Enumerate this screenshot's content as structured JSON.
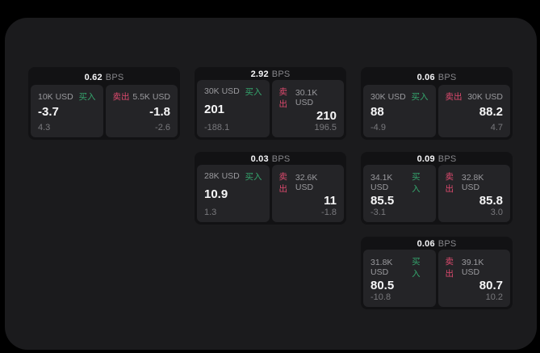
{
  "labels": {
    "buy": "买入",
    "sell": "卖出",
    "bps_unit": "BPS"
  },
  "colors": {
    "buy_green": "#35a56d",
    "sell_pink": "#dd4a6e",
    "panel_bg": "#1b1b1d",
    "card_bg": "#121214",
    "pane_bg": "#242427"
  },
  "cards": [
    {
      "row": 1,
      "col": 1,
      "bps": "0.62",
      "buy": {
        "amount": "10K USD",
        "price": "-3.7",
        "delta": "4.3"
      },
      "sell": {
        "amount": "5.5K USD",
        "price": "-1.8",
        "delta": "-2.6"
      }
    },
    {
      "row": 1,
      "col": 2,
      "bps": "2.92",
      "buy": {
        "amount": "30K USD",
        "price": "201",
        "delta": "-188.1"
      },
      "sell": {
        "amount": "30.1K USD",
        "price": "210",
        "delta": "196.5"
      }
    },
    {
      "row": 1,
      "col": 3,
      "bps": "0.06",
      "buy": {
        "amount": "30K USD",
        "price": "88",
        "delta": "-4.9"
      },
      "sell": {
        "amount": "30K USD",
        "price": "88.2",
        "delta": "4.7"
      }
    },
    {
      "row": 2,
      "col": 2,
      "bps": "0.03",
      "buy": {
        "amount": "28K USD",
        "price": "10.9",
        "delta": "1.3"
      },
      "sell": {
        "amount": "32.6K USD",
        "price": "11",
        "delta": "-1.8"
      }
    },
    {
      "row": 2,
      "col": 3,
      "bps": "0.09",
      "buy": {
        "amount": "34.1K USD",
        "price": "85.5",
        "delta": "-3.1"
      },
      "sell": {
        "amount": "32.8K USD",
        "price": "85.8",
        "delta": "3.0"
      }
    },
    {
      "row": 3,
      "col": 3,
      "bps": "0.06",
      "buy": {
        "amount": "31.8K USD",
        "price": "80.5",
        "delta": "-10.8"
      },
      "sell": {
        "amount": "39.1K USD",
        "price": "80.7",
        "delta": "10.2"
      }
    }
  ]
}
